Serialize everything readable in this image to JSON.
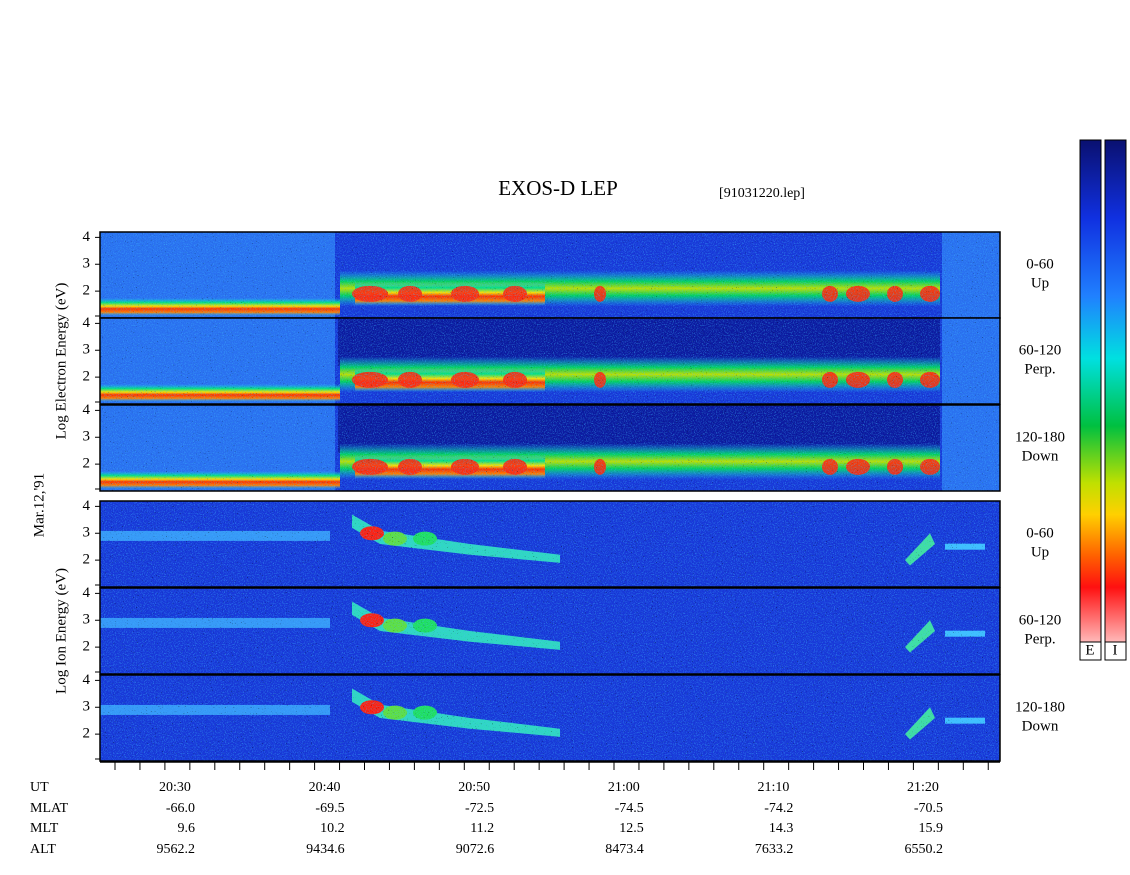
{
  "header": {
    "title": "EXOS-D LEP",
    "file": "[91031220.lep]"
  },
  "date": "Mar.12,'91",
  "electron_axis_label": "Log Electron Energy (eV)",
  "ion_axis_label": "Log Ion Energy (eV)",
  "energy_ticks": [
    "4",
    "3",
    "2"
  ],
  "pitch_labels": [
    [
      "0-60",
      "Up"
    ],
    [
      "60-120",
      "Perp."
    ],
    [
      "120-180",
      "Down"
    ]
  ],
  "colorbar_labels": [
    "E",
    "I"
  ],
  "table": {
    "row_labels": [
      "UT",
      "MLAT",
      "MLT",
      "ALT"
    ],
    "columns": [
      [
        "20:30",
        "-66.0",
        "9.6",
        "9562.2"
      ],
      [
        "20:40",
        "-69.5",
        "10.2",
        "9434.6"
      ],
      [
        "20:50",
        "-72.5",
        "11.2",
        "9072.6"
      ],
      [
        "21:00",
        "-74.5",
        "12.5",
        "8473.4"
      ],
      [
        "21:10",
        "-74.2",
        "14.3",
        "7633.2"
      ],
      [
        "21:20",
        "-70.5",
        "15.9",
        "6550.2"
      ]
    ]
  }
}
